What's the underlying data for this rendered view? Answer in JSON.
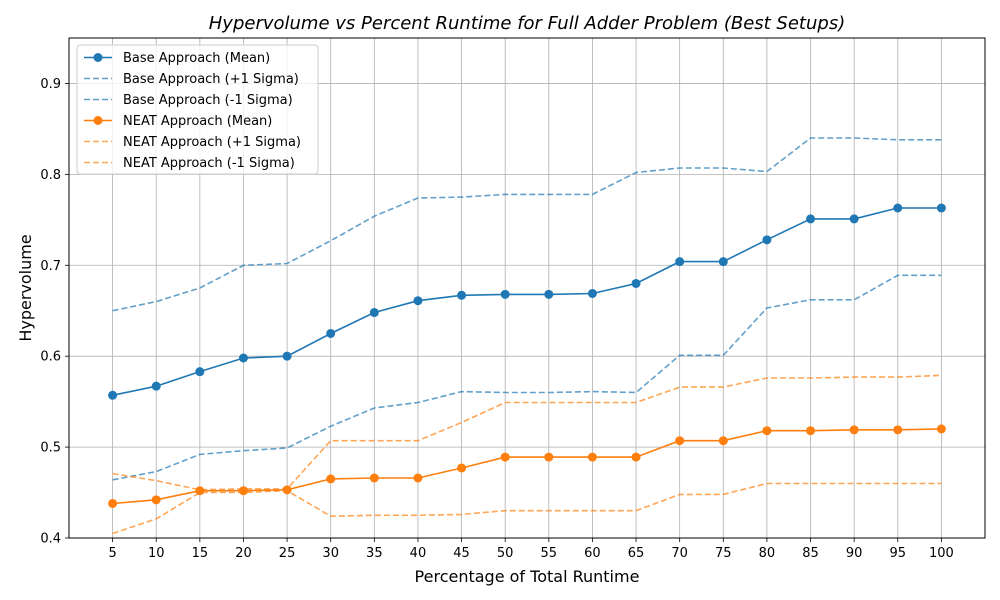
{
  "chart_data": {
    "type": "line",
    "title": "Hypervolume vs Percent Runtime for Full Adder Problem (Best Setups)",
    "xlabel": "Percentage of Total Runtime",
    "ylabel": "Hypervolume",
    "x": [
      5,
      10,
      15,
      20,
      25,
      30,
      35,
      40,
      45,
      50,
      55,
      60,
      65,
      70,
      75,
      80,
      85,
      90,
      95,
      100
    ],
    "xticks": [
      "5",
      "10",
      "15",
      "20",
      "25",
      "30",
      "35",
      "40",
      "45",
      "50",
      "55",
      "60",
      "65",
      "70",
      "75",
      "80",
      "85",
      "90",
      "95",
      "100"
    ],
    "ylim": [
      0.4,
      0.95
    ],
    "yticks": [
      "0.4",
      "0.5",
      "0.6",
      "0.7",
      "0.8",
      "0.9"
    ],
    "grid": true,
    "legend_position": "top-left",
    "series": [
      {
        "name": "Base Approach (Mean)",
        "color": "#1f77b4",
        "style": "solid-marker",
        "values": [
          0.557,
          0.567,
          0.583,
          0.598,
          0.6,
          0.625,
          0.648,
          0.661,
          0.667,
          0.668,
          0.668,
          0.669,
          0.68,
          0.704,
          0.704,
          0.728,
          0.751,
          0.751,
          0.763,
          0.763
        ]
      },
      {
        "name": "Base Approach (+1 Sigma)",
        "color": "#1f77b4",
        "style": "dashed",
        "values": [
          0.65,
          0.66,
          0.675,
          0.7,
          0.702,
          0.727,
          0.754,
          0.774,
          0.775,
          0.778,
          0.778,
          0.778,
          0.802,
          0.807,
          0.807,
          0.803,
          0.84,
          0.84,
          0.838,
          0.838
        ]
      },
      {
        "name": "Base Approach (-1 Sigma)",
        "color": "#1f77b4",
        "style": "dashed",
        "values": [
          0.464,
          0.473,
          0.492,
          0.496,
          0.499,
          0.523,
          0.543,
          0.549,
          0.561,
          0.56,
          0.56,
          0.561,
          0.56,
          0.601,
          0.601,
          0.653,
          0.662,
          0.662,
          0.689,
          0.689
        ]
      },
      {
        "name": "NEAT Approach (Mean)",
        "color": "#ff7f0e",
        "style": "solid-marker",
        "values": [
          0.438,
          0.442,
          0.452,
          0.452,
          0.453,
          0.465,
          0.466,
          0.466,
          0.477,
          0.489,
          0.489,
          0.489,
          0.489,
          0.507,
          0.507,
          0.518,
          0.518,
          0.519,
          0.519,
          0.52
        ]
      },
      {
        "name": "NEAT Approach (+1 Sigma)",
        "color": "#ff7f0e",
        "style": "dashed",
        "values": [
          0.471,
          0.463,
          0.453,
          0.454,
          0.454,
          0.507,
          0.507,
          0.507,
          0.527,
          0.549,
          0.549,
          0.549,
          0.549,
          0.566,
          0.566,
          0.576,
          0.576,
          0.577,
          0.577,
          0.579
        ]
      },
      {
        "name": "NEAT Approach (-1 Sigma)",
        "color": "#ff7f0e",
        "style": "dashed",
        "values": [
          0.405,
          0.421,
          0.45,
          0.45,
          0.452,
          0.424,
          0.425,
          0.425,
          0.426,
          0.43,
          0.43,
          0.43,
          0.43,
          0.448,
          0.448,
          0.46,
          0.46,
          0.46,
          0.46,
          0.46
        ]
      }
    ]
  }
}
